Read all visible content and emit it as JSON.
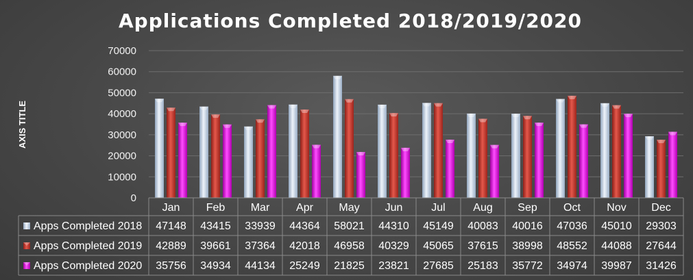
{
  "chart_data": {
    "type": "bar",
    "title": "Applications Completed 2018/2019/2020",
    "ylabel": "AXIS TITLE",
    "xlabel": "",
    "ylim": [
      0,
      70000
    ],
    "yticks": [
      0,
      10000,
      20000,
      30000,
      40000,
      50000,
      60000,
      70000
    ],
    "grid": true,
    "legend": "data-table",
    "categories": [
      "Jan",
      "Feb",
      "Mar",
      "Apr",
      "May",
      "Jun",
      "Jul",
      "Aug",
      "Sep",
      "Oct",
      "Nov",
      "Dec"
    ],
    "series": [
      {
        "name": "Apps Completed 2018",
        "color": "#b8c9de",
        "values": [
          47148,
          43415,
          33939,
          44364,
          58021,
          44310,
          45149,
          40083,
          40016,
          47036,
          45010,
          29303
        ]
      },
      {
        "name": "Apps Completed 2019",
        "color": "#c0352b",
        "values": [
          42889,
          39661,
          37364,
          42018,
          46958,
          40329,
          45065,
          37615,
          38998,
          48552,
          44088,
          27644
        ]
      },
      {
        "name": "Apps Completed 2020",
        "color": "#e012e0",
        "values": [
          35756,
          34934,
          44134,
          25249,
          21825,
          23821,
          27685,
          25183,
          35772,
          34974,
          39987,
          31426
        ]
      }
    ]
  }
}
